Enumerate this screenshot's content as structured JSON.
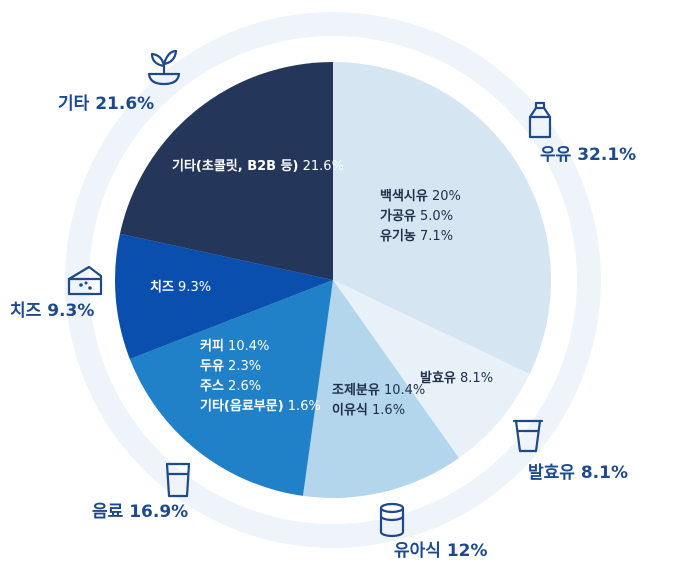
{
  "chart_data": {
    "type": "pie",
    "slices": [
      {
        "name": "우유",
        "value": 32.1,
        "color": "#d5e6f2",
        "text_color": "#1f2f4a",
        "outer_label": "우유 32.1%",
        "icon": "milk-carton-icon",
        "details": [
          {
            "name": "백색시유",
            "value": "20%"
          },
          {
            "name": "가공유",
            "value": "5.0%"
          },
          {
            "name": "유기농",
            "value": "7.1%"
          }
        ]
      },
      {
        "name": "발효유",
        "value": 8.1,
        "color": "#e8f1f8",
        "text_color": "#1f2f4a",
        "outer_label": "발효유 8.1%",
        "icon": "yogurt-cup-icon",
        "details": [
          {
            "name": "발효유",
            "value": "8.1%"
          }
        ]
      },
      {
        "name": "유아식",
        "value": 12,
        "color": "#b3d6ec",
        "text_color": "#1f2f4a",
        "outer_label": "유아식 12%",
        "icon": "formula-can-icon",
        "details": [
          {
            "name": "조제분유",
            "value": "10.4%"
          },
          {
            "name": "이유식",
            "value": "1.6%"
          }
        ]
      },
      {
        "name": "음료",
        "value": 16.9,
        "color": "#2181c8",
        "text_color": "#ffffff",
        "outer_label": "음료 16.9%",
        "icon": "drink-glass-icon",
        "details": [
          {
            "name": "커피",
            "value": "10.4%"
          },
          {
            "name": "두유",
            "value": "2.3%"
          },
          {
            "name": "주스",
            "value": "2.6%"
          },
          {
            "name": "기타(음료부문)",
            "value": "1.6%"
          }
        ]
      },
      {
        "name": "치즈",
        "value": 9.3,
        "color": "#0b4fae",
        "text_color": "#ffffff",
        "outer_label": "치즈 9.3%",
        "icon": "cheese-icon",
        "details": [
          {
            "name": "치즈",
            "value": "9.3%"
          }
        ]
      },
      {
        "name": "기타",
        "value": 21.6,
        "color": "#243659",
        "text_color": "#ffffff",
        "outer_label": "기타 21.6%",
        "icon": "plant-bowl-icon",
        "details": [
          {
            "name": "기타(초콜릿, B2B 등)",
            "value": "21.6%"
          }
        ]
      }
    ]
  }
}
